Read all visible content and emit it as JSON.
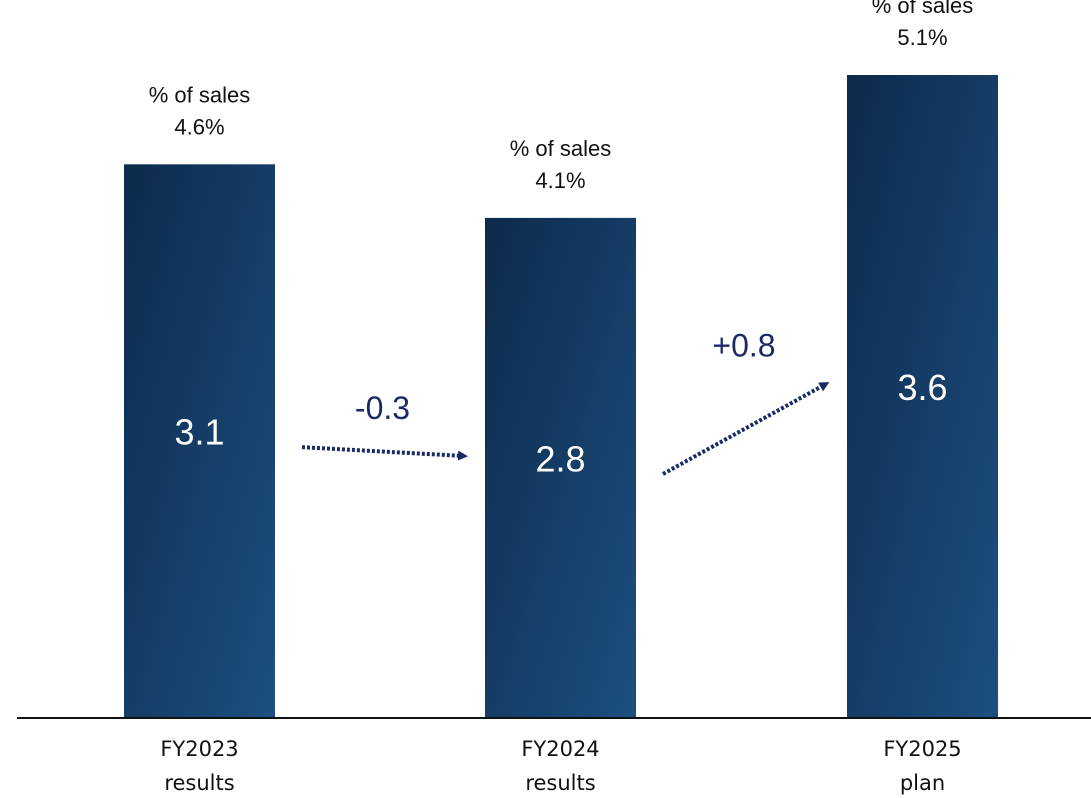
{
  "chart_data": {
    "type": "bar",
    "categories": [
      [
        "FY2023",
        "results"
      ],
      [
        "FY2024",
        "results"
      ],
      [
        "FY2025",
        "plan"
      ]
    ],
    "values": [
      3.1,
      2.8,
      3.6
    ],
    "value_labels": [
      "3.1",
      "2.8",
      "3.6"
    ],
    "annotations": [
      {
        "lines": [
          "% of sales",
          "4.6%"
        ]
      },
      {
        "lines": [
          "% of sales",
          "4.1%"
        ]
      },
      {
        "lines": [
          "% of sales",
          "5.1%"
        ]
      }
    ],
    "changes": [
      {
        "label": "-0.3",
        "from": 0,
        "to": 1
      },
      {
        "label": "+0.8",
        "from": 1,
        "to": 2
      }
    ],
    "ylim": [
      0,
      4.02
    ],
    "grid": false,
    "legend": "none",
    "title": "",
    "xlabel": "",
    "ylabel": ""
  },
  "colors": {
    "bar_top": "#0d2a4c",
    "bar_bottom": "#1c4f80",
    "arrow": "#1a2a66",
    "axis": "#111111"
  }
}
